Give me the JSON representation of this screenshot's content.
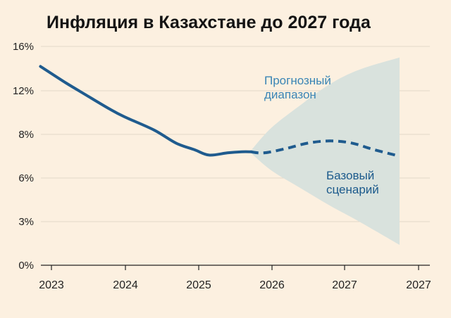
{
  "colors": {
    "background": "#fcf0e0",
    "actual_line": "#1f5b8e",
    "forecast_line": "#1f5b8e",
    "forecast_band": "#d9e2dd",
    "range_label": "#3a85b5",
    "base_label": "#1c5a8c",
    "grid": "#e2d7c8"
  },
  "chart_data": {
    "type": "line",
    "title": "Инфляция в Казахстане до 2027 года",
    "xlabel": "",
    "ylabel": "",
    "y_tick_labels": [
      "0%",
      "3%",
      "6%",
      "8%",
      "12%",
      "16%"
    ],
    "x_tick_labels": [
      "2023",
      "2024",
      "2025",
      "2026",
      "2027",
      "2027"
    ],
    "grid": "horizontal",
    "series": [
      {
        "style": "solid",
        "points": [
          {
            "x": 2022.85,
            "y": 14.2
          },
          {
            "x": 2023.2,
            "y": 12.7
          },
          {
            "x": 2023.5,
            "y": 11.5
          },
          {
            "x": 2023.8,
            "y": 10.3
          },
          {
            "x": 2024.0,
            "y": 9.6
          },
          {
            "x": 2024.4,
            "y": 8.4
          },
          {
            "x": 2024.7,
            "y": 7.6
          },
          {
            "x": 2024.95,
            "y": 7.3
          },
          {
            "x": 2025.15,
            "y": 7.05
          },
          {
            "x": 2025.4,
            "y": 7.15
          },
          {
            "x": 2025.6,
            "y": 7.2
          },
          {
            "x": 2025.72,
            "y": 7.2
          }
        ]
      },
      {
        "style": "dashed",
        "points": [
          {
            "x": 2025.72,
            "y": 7.2
          },
          {
            "x": 2025.9,
            "y": 7.15
          },
          {
            "x": 2026.2,
            "y": 7.35
          },
          {
            "x": 2026.5,
            "y": 7.6
          },
          {
            "x": 2026.8,
            "y": 7.7
          },
          {
            "x": 2027.1,
            "y": 7.6
          },
          {
            "x": 2027.4,
            "y": 7.3
          },
          {
            "x": 2027.75,
            "y": 7.0
          }
        ]
      }
    ],
    "forecast_range": {
      "label": "Прогнозный диапазон",
      "upper": [
        {
          "x": 2025.72,
          "y": 7.25
        },
        {
          "x": 2026.0,
          "y": 8.6
        },
        {
          "x": 2026.4,
          "y": 10.7
        },
        {
          "x": 2026.8,
          "y": 12.6
        },
        {
          "x": 2027.2,
          "y": 13.9
        },
        {
          "x": 2027.75,
          "y": 15.0
        }
      ],
      "lower": [
        {
          "x": 2025.72,
          "y": 7.15
        },
        {
          "x": 2026.0,
          "y": 6.35
        },
        {
          "x": 2026.4,
          "y": 5.3
        },
        {
          "x": 2026.8,
          "y": 4.1
        },
        {
          "x": 2027.2,
          "y": 3.0
        },
        {
          "x": 2027.75,
          "y": 1.4
        }
      ]
    },
    "annotations": [
      {
        "id": "range",
        "lines": [
          "Прогнозный",
          "диапазон"
        ]
      },
      {
        "id": "base",
        "lines": [
          "Базовый",
          "сценарий"
        ]
      }
    ]
  }
}
